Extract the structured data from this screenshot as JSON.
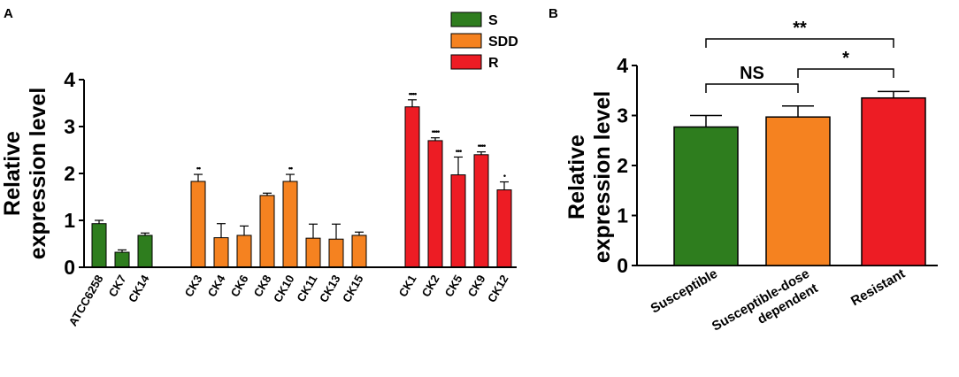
{
  "panel_a": {
    "label": "A"
  },
  "panel_b": {
    "label": "B"
  },
  "colors": {
    "S": "#2e7d1e",
    "SDD": "#f58220",
    "R": "#ed1c24",
    "axis": "#000000"
  },
  "chart_data": [
    {
      "type": "bar",
      "panel": "A",
      "title": "",
      "xlabel": "",
      "ylabel": "Relative expression level",
      "ylabel_lines": [
        "Relative",
        "expression level"
      ],
      "ylim": [
        0,
        4
      ],
      "yticks": [
        "0",
        "1",
        "2",
        "3",
        "4"
      ],
      "legend": {
        "placement": "top-center",
        "entries": [
          {
            "key": "S",
            "label": "S"
          },
          {
            "key": "SDD",
            "label": "SDD"
          },
          {
            "key": "R",
            "label": "R"
          }
        ]
      },
      "groups": [
        {
          "key": "S",
          "categories": [
            "ATCC6258",
            "CK7",
            "CK14"
          ],
          "values": [
            0.93,
            0.32,
            0.68
          ],
          "errors": [
            0.07,
            0.05,
            0.05
          ],
          "significance": [
            "",
            "",
            ""
          ]
        },
        {
          "key": "SDD",
          "categories": [
            "CK3",
            "CK4",
            "CK6",
            "CK8",
            "CK10",
            "CK11",
            "CK13",
            "CK15"
          ],
          "values": [
            1.83,
            0.63,
            0.68,
            1.53,
            1.83,
            0.62,
            0.6,
            0.68
          ],
          "errors": [
            0.15,
            0.3,
            0.2,
            0.05,
            0.15,
            0.3,
            0.32,
            0.07
          ],
          "significance": [
            "••",
            "",
            "",
            "",
            "••",
            "",
            "",
            ""
          ]
        },
        {
          "key": "R",
          "categories": [
            "CK1",
            "CK2",
            "CK5",
            "CK9",
            "CK12"
          ],
          "values": [
            3.42,
            2.7,
            1.97,
            2.4,
            1.65
          ],
          "errors": [
            0.15,
            0.06,
            0.38,
            0.06,
            0.17
          ],
          "significance": [
            "••••",
            "••••",
            "•••",
            "••••",
            "•"
          ]
        }
      ]
    },
    {
      "type": "bar",
      "panel": "B",
      "title": "",
      "xlabel": "",
      "ylabel": "Relative expression level",
      "ylabel_lines": [
        "Relative",
        "expression level"
      ],
      "ylim": [
        0,
        4
      ],
      "yticks": [
        "0",
        "1",
        "2",
        "3",
        "4"
      ],
      "categories": [
        {
          "key": "S",
          "label_lines": [
            "Susceptible"
          ]
        },
        {
          "key": "SDD",
          "label_lines": [
            "Susceptible-dose",
            "dependent"
          ]
        },
        {
          "key": "R",
          "label_lines": [
            "Resistant"
          ]
        }
      ],
      "values": [
        2.77,
        2.97,
        3.35
      ],
      "errors": [
        0.23,
        0.22,
        0.13
      ],
      "comparisons": [
        {
          "from": 0,
          "to": 1,
          "label": "NS"
        },
        {
          "from": 1,
          "to": 2,
          "label": "*"
        },
        {
          "from": 0,
          "to": 2,
          "label": "**"
        }
      ]
    }
  ]
}
